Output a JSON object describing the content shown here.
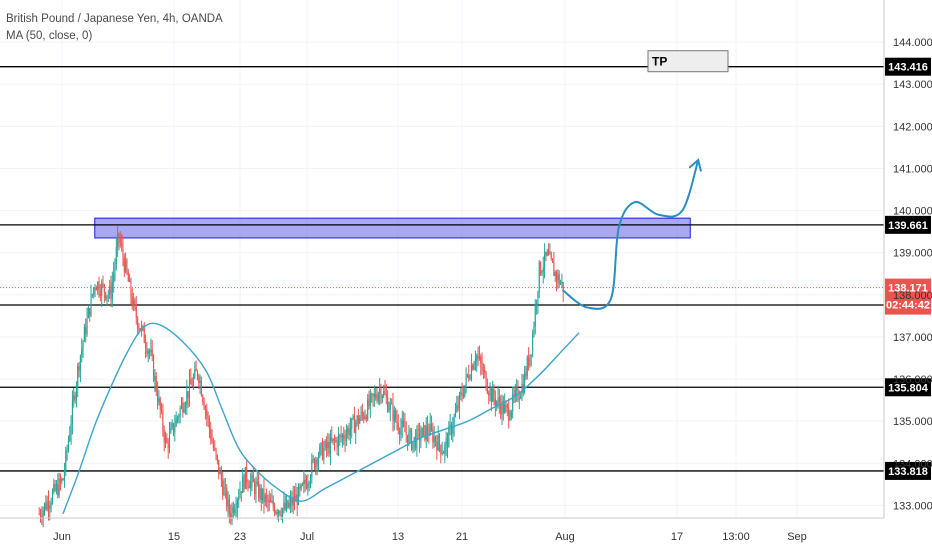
{
  "header": {
    "symbol_line": "British Pound / Japanese Yen, 4h, OANDA",
    "indicator_line": "MA (50, close, 0)"
  },
  "colors": {
    "up": "#26a69a",
    "down": "#ef5350",
    "ma": "#3ba4c8",
    "zone_fill": "#8b8bf2",
    "zone_border": "#1c1cd6",
    "level": "#000000",
    "current_price_badge": "#ef5350",
    "forecast": "#2a8fc0",
    "grid": "#f0f3fa"
  },
  "chart_data": {
    "type": "candlestick",
    "y_axis": {
      "min": 132.7,
      "max": 145.0,
      "ticks": [
        "133.000",
        "134.000",
        "135.000",
        "136.000",
        "137.000",
        "138.000",
        "139.000",
        "140.000",
        "141.000",
        "142.000",
        "143.000",
        "144.000"
      ]
    },
    "x_axis": {
      "ticks": [
        "Jun",
        "15",
        "23",
        "Jul",
        "13",
        "21",
        "Aug",
        "17",
        "13:00",
        "Sep"
      ]
    },
    "horizontal_levels": [
      {
        "value": 143.416,
        "label": "143.416"
      },
      {
        "value": 139.661,
        "label": "139.661"
      },
      {
        "value": 137.758,
        "label": "137.758"
      },
      {
        "value": 135.804,
        "label": "135.804"
      },
      {
        "value": 133.818,
        "label": "133.818"
      }
    ],
    "current_price": {
      "value": 138.171,
      "label": "138.171",
      "countdown": "02:44:42"
    },
    "resistance_zone": {
      "from": 139.35,
      "to": 139.82
    },
    "tp_label": "TP",
    "tp_price": 143.416,
    "price_path": [
      {
        "date": "2020-05-29",
        "price": 132.8
      },
      {
        "date": "2020-06-01",
        "price": 133.6
      },
      {
        "date": "2020-06-03",
        "price": 136.4
      },
      {
        "date": "2020-06-05",
        "price": 138.3
      },
      {
        "date": "2020-06-07",
        "price": 138.0
      },
      {
        "date": "2020-06-08",
        "price": 139.4
      },
      {
        "date": "2020-06-10",
        "price": 137.6
      },
      {
        "date": "2020-06-12",
        "price": 136.6
      },
      {
        "date": "2020-06-14",
        "price": 134.4
      },
      {
        "date": "2020-06-16",
        "price": 135.4
      },
      {
        "date": "2020-06-18",
        "price": 136.2
      },
      {
        "date": "2020-06-20",
        "price": 134.3
      },
      {
        "date": "2020-06-22",
        "price": 132.8
      },
      {
        "date": "2020-06-24",
        "price": 133.7
      },
      {
        "date": "2020-06-27",
        "price": 133.0
      },
      {
        "date": "2020-06-29",
        "price": 132.9
      },
      {
        "date": "2020-07-01",
        "price": 133.3
      },
      {
        "date": "2020-07-03",
        "price": 134.2
      },
      {
        "date": "2020-07-06",
        "price": 134.6
      },
      {
        "date": "2020-07-09",
        "price": 135.2
      },
      {
        "date": "2020-07-11",
        "price": 135.8
      },
      {
        "date": "2020-07-13",
        "price": 135.0
      },
      {
        "date": "2020-07-15",
        "price": 134.5
      },
      {
        "date": "2020-07-17",
        "price": 134.8
      },
      {
        "date": "2020-07-19",
        "price": 134.3
      },
      {
        "date": "2020-07-20",
        "price": 134.9
      },
      {
        "date": "2020-07-22",
        "price": 136.1
      },
      {
        "date": "2020-07-23",
        "price": 136.6
      },
      {
        "date": "2020-07-25",
        "price": 135.6
      },
      {
        "date": "2020-07-27",
        "price": 135.2
      },
      {
        "date": "2020-07-29",
        "price": 135.9
      },
      {
        "date": "2020-07-30",
        "price": 136.8
      },
      {
        "date": "2020-07-31",
        "price": 138.6
      },
      {
        "date": "2020-08-01",
        "price": 138.9
      },
      {
        "date": "2020-08-02",
        "price": 138.5
      },
      {
        "date": "2020-08-03",
        "price": 138.17
      }
    ],
    "ma_path": [
      {
        "date": "2020-06-01",
        "price": 132.8
      },
      {
        "date": "2020-06-03",
        "price": 133.8
      },
      {
        "date": "2020-06-05",
        "price": 134.9
      },
      {
        "date": "2020-06-07",
        "price": 135.8
      },
      {
        "date": "2020-06-09",
        "price": 136.6
      },
      {
        "date": "2020-06-11",
        "price": 137.2
      },
      {
        "date": "2020-06-13",
        "price": 137.3
      },
      {
        "date": "2020-06-16",
        "price": 136.9
      },
      {
        "date": "2020-06-19",
        "price": 136.2
      },
      {
        "date": "2020-06-21",
        "price": 135.3
      },
      {
        "date": "2020-06-23",
        "price": 134.4
      },
      {
        "date": "2020-06-25",
        "price": 133.9
      },
      {
        "date": "2020-06-28",
        "price": 133.4
      },
      {
        "date": "2020-07-01",
        "price": 133.1
      },
      {
        "date": "2020-07-04",
        "price": 133.4
      },
      {
        "date": "2020-07-07",
        "price": 133.7
      },
      {
        "date": "2020-07-10",
        "price": 134.0
      },
      {
        "date": "2020-07-13",
        "price": 134.3
      },
      {
        "date": "2020-07-16",
        "price": 134.6
      },
      {
        "date": "2020-07-19",
        "price": 134.8
      },
      {
        "date": "2020-07-22",
        "price": 135.0
      },
      {
        "date": "2020-07-25",
        "price": 135.3
      },
      {
        "date": "2020-07-28",
        "price": 135.6
      },
      {
        "date": "2020-07-31",
        "price": 136.1
      },
      {
        "date": "2020-08-03",
        "price": 136.7
      },
      {
        "date": "2020-08-05",
        "price": 137.1
      }
    ],
    "forecast_path": [
      {
        "date": "2020-08-03",
        "price": 138.1
      },
      {
        "date": "2020-08-06",
        "price": 137.7
      },
      {
        "date": "2020-08-09",
        "price": 137.9
      },
      {
        "date": "2020-08-10",
        "price": 139.6
      },
      {
        "date": "2020-08-12",
        "price": 140.2
      },
      {
        "date": "2020-08-15",
        "price": 139.9
      },
      {
        "date": "2020-08-18",
        "price": 140.0
      },
      {
        "date": "2020-08-20",
        "price": 141.2
      }
    ]
  }
}
